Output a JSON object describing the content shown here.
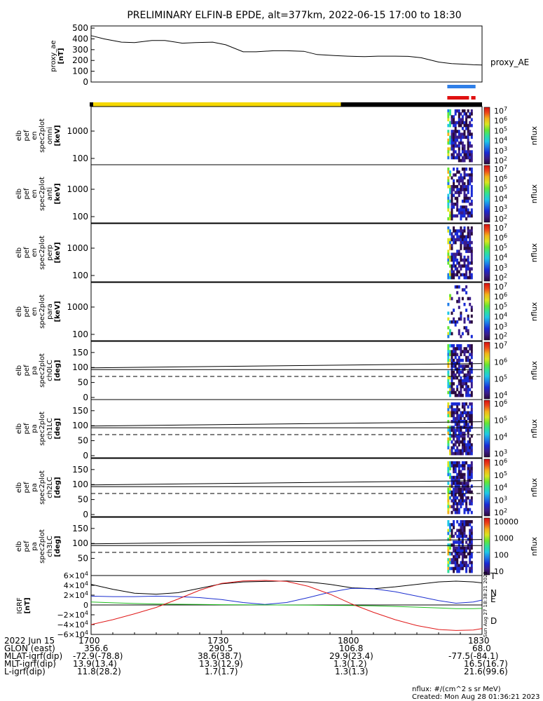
{
  "title": "PRELIMINARY ELFIN-B EPDE, alt=377km, 2022-06-15 17:00 to 18:30",
  "chart_data": {
    "type": "line",
    "x_range": [
      "17:00",
      "18:30"
    ],
    "proxy_ae": {
      "ylabel": [
        "proxy_ae",
        "[nT]"
      ],
      "legend": "proxy_AE",
      "y_ticks": [
        "500",
        "400",
        "300",
        "200",
        "100",
        "0"
      ],
      "ylim": [
        0,
        520
      ],
      "x_minutes": [
        0,
        3,
        7,
        10,
        14,
        17,
        21,
        24,
        28,
        31,
        35,
        38,
        42,
        45,
        49,
        52,
        56,
        59,
        63,
        66,
        70,
        73,
        76,
        80,
        83,
        86,
        88,
        90
      ],
      "values": [
        430,
        400,
        370,
        365,
        385,
        385,
        360,
        365,
        370,
        345,
        280,
        280,
        290,
        290,
        285,
        255,
        245,
        240,
        235,
        240,
        240,
        238,
        225,
        185,
        170,
        165,
        160,
        158
      ],
      "bars": [
        {
          "color": "#2f7fe8",
          "from_min": 82.0,
          "to_min": 88.5
        },
        {
          "color": "#e01010",
          "from_min": 82.0,
          "to_min": 87.0
        },
        {
          "color": "#e01010",
          "from_min": 87.5,
          "to_min": 88.5
        }
      ],
      "orbit_segments": [
        {
          "color": "#f5d800",
          "from_min": 0.3,
          "to_min": 57.5
        },
        {
          "color": "#000000",
          "from_min": 57.5,
          "to_min": 90
        }
      ]
    },
    "panels": [
      {
        "ylabel": [
          "elb",
          "pef",
          "en",
          "spec2plot",
          "omni",
          "[keV]"
        ],
        "y_ticks": [
          "1000",
          "100"
        ],
        "cbar_ticks": [
          "10^7",
          "10^6",
          "10^5",
          "10^4",
          "10^3",
          "10^2"
        ],
        "cbar_label": "nflux",
        "kind": "energy"
      },
      {
        "ylabel": [
          "elb",
          "pef",
          "en",
          "spec2plot",
          "anti",
          "[keV]"
        ],
        "y_ticks": [
          "1000",
          "100"
        ],
        "cbar_ticks": [
          "10^7",
          "10^6",
          "10^5",
          "10^4",
          "10^3",
          "10^2"
        ],
        "cbar_label": "nflux",
        "kind": "energy"
      },
      {
        "ylabel": [
          "elb",
          "pef",
          "en",
          "spec2plot",
          "perp",
          "[keV]"
        ],
        "y_ticks": [
          "1000",
          "100"
        ],
        "cbar_ticks": [
          "10^7",
          "10^6",
          "10^5",
          "10^4",
          "10^3",
          "10^2"
        ],
        "cbar_label": "nflux",
        "kind": "energy"
      },
      {
        "ylabel": [
          "elb",
          "pef",
          "en",
          "spec2plot",
          "para",
          "[keV]"
        ],
        "y_ticks": [
          "1000",
          "100"
        ],
        "cbar_ticks": [
          "10^7",
          "10^6",
          "10^5",
          "10^4",
          "10^3",
          "10^2"
        ],
        "cbar_label": "nflux",
        "kind": "energy"
      },
      {
        "ylabel": [
          "elb",
          "pef",
          "pa",
          "spec2plot",
          "ch0LC",
          "[deg]"
        ],
        "y_ticks": [
          "150",
          "100",
          "50",
          "0"
        ],
        "cbar_ticks": [
          "10^7",
          "10^6",
          "10^5",
          "10^4"
        ],
        "cbar_label": "nflux",
        "kind": "pitch"
      },
      {
        "ylabel": [
          "elb",
          "pef",
          "pa",
          "spec2plot",
          "ch1LC",
          "[deg]"
        ],
        "y_ticks": [
          "150",
          "100",
          "50",
          "0"
        ],
        "cbar_ticks": [
          "10^6",
          "10^5",
          "10^4",
          "10^3"
        ],
        "cbar_label": "nflux",
        "kind": "pitch"
      },
      {
        "ylabel": [
          "elb",
          "pef",
          "pa",
          "spec2plot",
          "ch2LC",
          "[deg]"
        ],
        "y_ticks": [
          "150",
          "100",
          "50",
          "0"
        ],
        "cbar_ticks": [
          "10^6",
          "10^5",
          "10^4",
          "10^3",
          "10^2"
        ],
        "cbar_label": "nflux",
        "kind": "pitch"
      },
      {
        "ylabel": [
          "elb",
          "pef",
          "pa",
          "spec2plot",
          "ch3LC",
          "[deg]"
        ],
        "y_ticks": [
          "150",
          "100",
          "50"
        ],
        "cbar_ticks": [
          "10000",
          "1000",
          "100",
          "10"
        ],
        "cbar_label": "nflux",
        "kind": "pitch"
      }
    ],
    "igrf": {
      "ylabel": [
        "IGRF",
        "[nT]"
      ],
      "y_ticks": [
        "6×10^4",
        "4×10^4",
        "2×10^4",
        "0",
        "−2×10^4",
        "−4×10^4",
        "−6×10^4"
      ],
      "ylim": [
        -60000,
        60000
      ],
      "series": [
        {
          "name": "T",
          "color": "#000000",
          "x": [
            0,
            5,
            10,
            15,
            20,
            25,
            30,
            35,
            40,
            45,
            50,
            55,
            60,
            65,
            70,
            75,
            80,
            84,
            88,
            90
          ],
          "y": [
            42000,
            32000,
            24000,
            22000,
            25000,
            34000,
            43000,
            47000,
            48000,
            49000,
            47000,
            42000,
            35000,
            33000,
            37000,
            42000,
            47000,
            48500,
            47000,
            45000
          ]
        },
        {
          "name": "N",
          "color": "#1c2fd0",
          "x": [
            0,
            5,
            10,
            15,
            20,
            25,
            30,
            35,
            40,
            45,
            50,
            55,
            60,
            65,
            70,
            75,
            80,
            84,
            88,
            90
          ],
          "y": [
            18000,
            17000,
            17000,
            18000,
            17000,
            15000,
            11000,
            5000,
            1000,
            5000,
            15000,
            26000,
            34000,
            33000,
            27000,
            18000,
            9000,
            3500,
            6000,
            10000
          ]
        },
        {
          "name": "E",
          "color": "#20c020",
          "x": [
            0,
            5,
            10,
            15,
            20,
            25,
            30,
            35,
            40,
            45,
            50,
            55,
            60,
            65,
            70,
            75,
            80,
            84,
            88,
            90
          ],
          "y": [
            6000,
            4500,
            3000,
            2000,
            1500,
            1000,
            500,
            300,
            100,
            -200,
            -400,
            -800,
            -1200,
            -1800,
            -3000,
            -4500,
            -6000,
            -7500,
            -7500,
            -7000
          ]
        },
        {
          "name": "D",
          "color": "#e01818",
          "x": [
            0,
            5,
            10,
            15,
            20,
            25,
            30,
            35,
            40,
            45,
            50,
            55,
            60,
            65,
            70,
            75,
            80,
            84,
            88,
            90
          ],
          "y": [
            -40000,
            -30000,
            -18000,
            -5000,
            12000,
            30000,
            44000,
            49000,
            50000,
            48000,
            38000,
            22000,
            2000,
            -15000,
            -30000,
            -42000,
            -50000,
            -52000,
            -51000,
            -48000
          ]
        }
      ]
    },
    "x_ticks": [
      "1700",
      "1730",
      "1800",
      "1830"
    ]
  },
  "footer": {
    "rows": [
      [
        "2022 Jun 15",
        "1700",
        "1730",
        "1800",
        "1830"
      ],
      [
        "GLON (east)",
        "356.6",
        "290.5",
        "106.8",
        "68.0"
      ],
      [
        "MLAT-igrf(dip)",
        "-72.9(-78.8)",
        "38.6(38.7)",
        "29.9(23.4)",
        "-77.5(-84.1)"
      ],
      [
        "MLT-igrf(dip)",
        "13.9(13.4)",
        "13.3(12.9)",
        "1.3(1.2)",
        "16.5(16.7)"
      ],
      [
        "L-igrf(dip)",
        "11.8(28.2)",
        "1.7(1.7)",
        "1.3(1.3)",
        "21.6(99.6)"
      ]
    ],
    "units": "nflux: #/(cm^2 s sr MeV)",
    "created": "Created: Mon Aug 28 01:36:21 2023",
    "stamp": "Sun Aug 27 18:38:21 2023"
  }
}
